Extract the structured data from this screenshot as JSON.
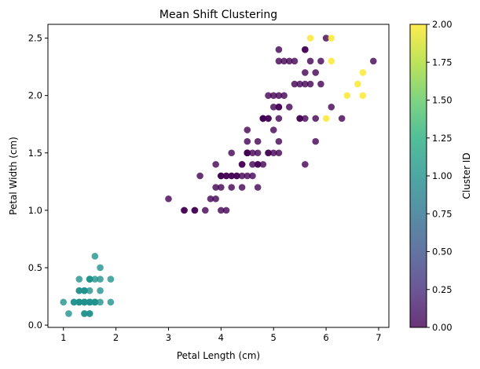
{
  "chart_data": {
    "type": "scatter",
    "title": "Mean Shift Clustering",
    "xlabel": "Petal Length (cm)",
    "ylabel": "Petal Width (cm)",
    "xlim": [
      0.705,
      7.195
    ],
    "ylim": [
      -0.02,
      2.62
    ],
    "xticks": [
      1,
      2,
      3,
      4,
      5,
      6,
      7
    ],
    "xtick_labels": [
      "1",
      "2",
      "3",
      "4",
      "5",
      "6",
      "7"
    ],
    "yticks": [
      0.0,
      0.5,
      1.0,
      1.5,
      2.0,
      2.5
    ],
    "ytick_labels": [
      "0.0",
      "0.5",
      "1.0",
      "1.5",
      "2.0",
      "2.5"
    ],
    "grid": false,
    "colormap": "viridis",
    "alpha": 0.8,
    "colorbar": {
      "label": "Cluster ID",
      "range": [
        0,
        2
      ],
      "ticks": [
        0,
        0.25,
        0.5,
        0.75,
        1,
        1.25,
        1.5,
        1.75,
        2
      ],
      "tick_labels": [
        "0.00",
        "0.25",
        "0.50",
        "0.75",
        "1.00",
        "1.25",
        "1.50",
        "1.75",
        "2.00"
      ],
      "position": "right"
    },
    "cluster_colors": {
      "0": "#440154",
      "1": "#21918c",
      "2": "#fde725"
    },
    "point_fields": [
      "petal_length",
      "petal_width",
      "cluster"
    ],
    "points": [
      [
        1.4,
        0.2,
        1
      ],
      [
        1.4,
        0.2,
        1
      ],
      [
        1.3,
        0.2,
        1
      ],
      [
        1.5,
        0.2,
        1
      ],
      [
        1.4,
        0.2,
        1
      ],
      [
        1.7,
        0.4,
        1
      ],
      [
        1.4,
        0.3,
        1
      ],
      [
        1.5,
        0.2,
        1
      ],
      [
        1.4,
        0.2,
        1
      ],
      [
        1.5,
        0.1,
        1
      ],
      [
        1.5,
        0.2,
        1
      ],
      [
        1.6,
        0.2,
        1
      ],
      [
        1.4,
        0.1,
        1
      ],
      [
        1.1,
        0.1,
        1
      ],
      [
        1.2,
        0.2,
        1
      ],
      [
        1.5,
        0.4,
        1
      ],
      [
        1.3,
        0.4,
        1
      ],
      [
        1.4,
        0.3,
        1
      ],
      [
        1.7,
        0.3,
        1
      ],
      [
        1.5,
        0.3,
        1
      ],
      [
        1.7,
        0.2,
        1
      ],
      [
        1.5,
        0.4,
        1
      ],
      [
        1.0,
        0.2,
        1
      ],
      [
        1.7,
        0.5,
        1
      ],
      [
        1.9,
        0.2,
        1
      ],
      [
        1.6,
        0.2,
        1
      ],
      [
        1.6,
        0.4,
        1
      ],
      [
        1.5,
        0.2,
        1
      ],
      [
        1.4,
        0.2,
        1
      ],
      [
        1.6,
        0.2,
        1
      ],
      [
        1.6,
        0.2,
        1
      ],
      [
        1.5,
        0.4,
        1
      ],
      [
        1.5,
        0.1,
        1
      ],
      [
        1.4,
        0.2,
        1
      ],
      [
        1.5,
        0.2,
        1
      ],
      [
        1.2,
        0.2,
        1
      ],
      [
        1.3,
        0.2,
        1
      ],
      [
        1.4,
        0.1,
        1
      ],
      [
        1.3,
        0.2,
        1
      ],
      [
        1.5,
        0.2,
        1
      ],
      [
        1.3,
        0.3,
        1
      ],
      [
        1.3,
        0.3,
        1
      ],
      [
        1.3,
        0.2,
        1
      ],
      [
        1.6,
        0.6,
        1
      ],
      [
        1.9,
        0.4,
        1
      ],
      [
        1.4,
        0.3,
        1
      ],
      [
        1.6,
        0.2,
        1
      ],
      [
        1.4,
        0.2,
        1
      ],
      [
        1.5,
        0.2,
        1
      ],
      [
        1.4,
        0.2,
        1
      ],
      [
        4.7,
        1.4,
        0
      ],
      [
        4.5,
        1.5,
        0
      ],
      [
        4.9,
        1.5,
        0
      ],
      [
        4.0,
        1.3,
        0
      ],
      [
        4.6,
        1.5,
        0
      ],
      [
        4.5,
        1.3,
        0
      ],
      [
        4.7,
        1.6,
        0
      ],
      [
        3.3,
        1.0,
        0
      ],
      [
        4.6,
        1.3,
        0
      ],
      [
        3.9,
        1.4,
        0
      ],
      [
        3.5,
        1.0,
        0
      ],
      [
        4.2,
        1.5,
        0
      ],
      [
        4.0,
        1.0,
        0
      ],
      [
        4.7,
        1.4,
        0
      ],
      [
        3.6,
        1.3,
        0
      ],
      [
        4.4,
        1.4,
        0
      ],
      [
        4.5,
        1.5,
        0
      ],
      [
        4.1,
        1.0,
        0
      ],
      [
        4.5,
        1.5,
        0
      ],
      [
        3.9,
        1.1,
        0
      ],
      [
        4.8,
        1.8,
        0
      ],
      [
        4.0,
        1.3,
        0
      ],
      [
        4.9,
        1.5,
        0
      ],
      [
        4.7,
        1.2,
        0
      ],
      [
        4.3,
        1.3,
        0
      ],
      [
        4.4,
        1.4,
        0
      ],
      [
        4.8,
        1.4,
        0
      ],
      [
        5.0,
        1.7,
        0
      ],
      [
        4.5,
        1.5,
        0
      ],
      [
        3.5,
        1.0,
        0
      ],
      [
        3.8,
        1.1,
        0
      ],
      [
        3.7,
        1.0,
        0
      ],
      [
        3.9,
        1.2,
        0
      ],
      [
        5.1,
        1.6,
        0
      ],
      [
        4.5,
        1.5,
        0
      ],
      [
        4.5,
        1.6,
        0
      ],
      [
        4.7,
        1.5,
        0
      ],
      [
        4.4,
        1.3,
        0
      ],
      [
        4.1,
        1.3,
        0
      ],
      [
        4.0,
        1.3,
        0
      ],
      [
        4.4,
        1.2,
        0
      ],
      [
        4.6,
        1.4,
        0
      ],
      [
        4.0,
        1.2,
        0
      ],
      [
        3.3,
        1.0,
        0
      ],
      [
        4.2,
        1.3,
        0
      ],
      [
        4.2,
        1.2,
        0
      ],
      [
        4.2,
        1.3,
        0
      ],
      [
        4.3,
        1.3,
        0
      ],
      [
        3.0,
        1.1,
        0
      ],
      [
        4.1,
        1.3,
        0
      ],
      [
        6.0,
        2.5,
        0
      ],
      [
        5.1,
        1.9,
        0
      ],
      [
        5.9,
        2.1,
        0
      ],
      [
        5.6,
        1.8,
        0
      ],
      [
        5.8,
        2.2,
        0
      ],
      [
        6.6,
        2.1,
        2
      ],
      [
        4.5,
        1.7,
        0
      ],
      [
        6.3,
        1.8,
        0
      ],
      [
        5.8,
        1.8,
        0
      ],
      [
        6.1,
        2.5,
        2
      ],
      [
        5.1,
        2.0,
        0
      ],
      [
        5.3,
        1.9,
        0
      ],
      [
        5.5,
        2.1,
        0
      ],
      [
        5.0,
        2.0,
        0
      ],
      [
        5.1,
        2.4,
        0
      ],
      [
        5.3,
        2.3,
        0
      ],
      [
        5.5,
        1.8,
        0
      ],
      [
        6.7,
        2.2,
        2
      ],
      [
        6.9,
        2.3,
        0
      ],
      [
        5.0,
        1.5,
        0
      ],
      [
        5.7,
        2.3,
        0
      ],
      [
        4.9,
        2.0,
        0
      ],
      [
        6.7,
        2.0,
        2
      ],
      [
        4.9,
        1.8,
        0
      ],
      [
        5.7,
        2.1,
        0
      ],
      [
        6.0,
        1.8,
        2
      ],
      [
        4.8,
        1.8,
        0
      ],
      [
        4.9,
        1.8,
        0
      ],
      [
        5.6,
        2.1,
        0
      ],
      [
        5.8,
        1.6,
        0
      ],
      [
        6.1,
        1.9,
        0
      ],
      [
        6.4,
        2.0,
        2
      ],
      [
        5.6,
        2.2,
        0
      ],
      [
        5.1,
        1.5,
        0
      ],
      [
        5.6,
        1.4,
        0
      ],
      [
        6.1,
        2.3,
        2
      ],
      [
        5.6,
        2.4,
        0
      ],
      [
        5.5,
        1.8,
        0
      ],
      [
        4.8,
        1.8,
        0
      ],
      [
        5.4,
        2.1,
        0
      ],
      [
        5.6,
        2.4,
        0
      ],
      [
        5.1,
        2.3,
        0
      ],
      [
        5.1,
        1.9,
        0
      ],
      [
        5.9,
        2.3,
        0
      ],
      [
        5.7,
        2.5,
        2
      ],
      [
        5.2,
        2.3,
        0
      ],
      [
        5.0,
        1.9,
        0
      ],
      [
        5.2,
        2.0,
        0
      ],
      [
        5.4,
        2.3,
        0
      ],
      [
        5.1,
        1.8,
        0
      ]
    ]
  }
}
